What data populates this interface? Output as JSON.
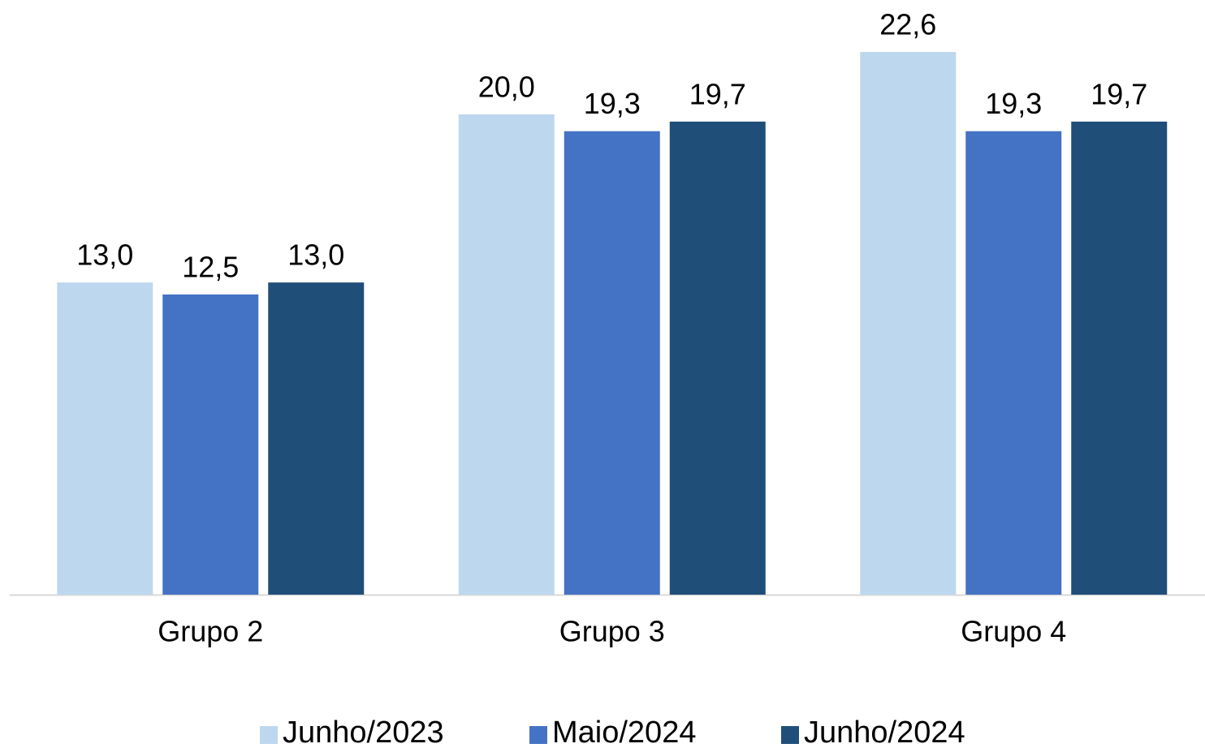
{
  "chart_data": {
    "type": "bar",
    "categories": [
      "Grupo 2",
      "Grupo 3",
      "Grupo 4"
    ],
    "series": [
      {
        "name": "Junho/2023",
        "color": "#bdd7ee",
        "values": [
          13.0,
          20.0,
          22.6
        ],
        "value_labels": [
          "13,0",
          "20,0",
          "22,6"
        ]
      },
      {
        "name": "Maio/2024",
        "color": "#4472c4",
        "values": [
          12.5,
          19.3,
          19.3
        ],
        "value_labels": [
          "12,5",
          "19,3",
          "19,3"
        ]
      },
      {
        "name": "Junho/2024",
        "color": "#1f4e79",
        "values": [
          13.0,
          19.7,
          19.7
        ],
        "value_labels": [
          "13,0",
          "19,7",
          "19,7"
        ]
      }
    ],
    "legend": "bottom"
  }
}
